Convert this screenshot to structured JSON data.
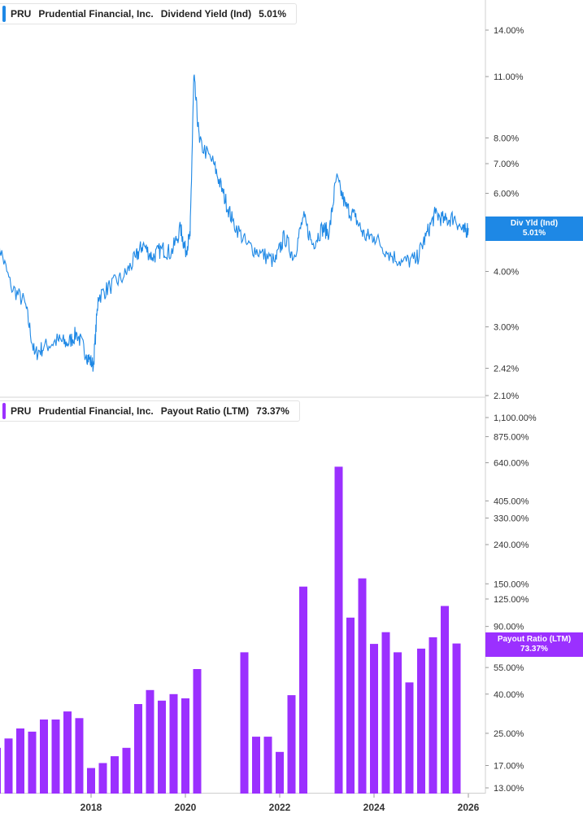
{
  "chart_data": [
    {
      "type": "line",
      "legend": {
        "ticker": "PRU",
        "company": "Prudential Financial, Inc.",
        "metric": "Dividend Yield (Ind)",
        "value": "5.01%"
      },
      "last_value_tag": {
        "line1": "Div Yld (Ind)",
        "line2": "5.01%"
      },
      "color": "#1e88e5",
      "scale": "log",
      "ylim": [
        2.1,
        16.5
      ],
      "y_ticks": [
        14.0,
        11.0,
        8.0,
        7.0,
        6.0,
        4.0,
        3.0,
        2.42,
        2.1
      ],
      "y_tick_labels": [
        "14.00%",
        "11.00%",
        "8.00%",
        "7.00%",
        "6.00%",
        "4.00%",
        "3.00%",
        "2.42%",
        "2.10%"
      ],
      "series": [
        {
          "points": [
            [
              2016.0,
              4.8
            ],
            [
              2016.3,
              3.7
            ],
            [
              2016.6,
              3.4
            ],
            [
              2016.8,
              2.6
            ],
            [
              2017.0,
              2.7
            ],
            [
              2017.3,
              2.8
            ],
            [
              2017.5,
              2.75
            ],
            [
              2017.7,
              2.9
            ],
            [
              2017.9,
              2.6
            ],
            [
              2018.05,
              2.45
            ],
            [
              2018.15,
              3.5
            ],
            [
              2018.4,
              3.7
            ],
            [
              2018.7,
              3.9
            ],
            [
              2018.95,
              4.3
            ],
            [
              2019.1,
              4.6
            ],
            [
              2019.3,
              4.3
            ],
            [
              2019.5,
              4.5
            ],
            [
              2019.7,
              4.4
            ],
            [
              2019.9,
              5.0
            ],
            [
              2020.0,
              4.45
            ],
            [
              2020.1,
              4.8
            ],
            [
              2020.18,
              11.0
            ],
            [
              2020.3,
              7.8
            ],
            [
              2020.6,
              7.0
            ],
            [
              2020.8,
              6.0
            ],
            [
              2021.0,
              5.2
            ],
            [
              2021.3,
              4.6
            ],
            [
              2021.6,
              4.4
            ],
            [
              2021.9,
              4.2
            ],
            [
              2022.1,
              4.8
            ],
            [
              2022.3,
              4.3
            ],
            [
              2022.5,
              5.3
            ],
            [
              2022.7,
              4.6
            ],
            [
              2022.9,
              5.0
            ],
            [
              2023.05,
              4.9
            ],
            [
              2023.2,
              6.5
            ],
            [
              2023.4,
              5.6
            ],
            [
              2023.6,
              5.3
            ],
            [
              2023.8,
              4.8
            ],
            [
              2024.0,
              4.8
            ],
            [
              2024.3,
              4.4
            ],
            [
              2024.6,
              4.2
            ],
            [
              2024.9,
              4.25
            ],
            [
              2025.1,
              4.8
            ],
            [
              2025.3,
              5.4
            ],
            [
              2025.5,
              5.2
            ],
            [
              2025.7,
              5.3
            ],
            [
              2025.9,
              4.9
            ],
            [
              2026.0,
              5.01
            ]
          ]
        }
      ]
    },
    {
      "type": "bar",
      "legend": {
        "ticker": "PRU",
        "company": "Prudential Financial, Inc.",
        "metric": "Payout Ratio (LTM)",
        "value": "73.37%"
      },
      "last_value_tag": {
        "line1": "Payout Ratio (LTM)",
        "line2": "73.37%"
      },
      "color": "#9b30ff",
      "scale": "log",
      "ylim": [
        12.5,
        1300
      ],
      "y_ticks": [
        1100,
        875,
        640,
        405,
        330,
        240,
        150,
        125,
        90,
        55,
        40,
        25,
        17,
        13
      ],
      "y_tick_labels": [
        "1,100.00%",
        "875.00%",
        "640.00%",
        "405.00%",
        "330.00%",
        "240.00%",
        "150.00%",
        "125.00%",
        "90.00%",
        "55.00%",
        "40.00%",
        "25.00%",
        "17.00%",
        "13.00%"
      ],
      "x": [
        2016.0,
        2016.125,
        2016.25,
        2016.375,
        2016.5,
        2016.625,
        2016.75,
        2016.875,
        2017.0,
        2017.125,
        2017.25,
        2017.375,
        2017.5,
        2017.625,
        2017.75,
        2017.875,
        2018.0,
        2018.125,
        2018.25,
        2018.375,
        2018.5,
        2018.625,
        2018.75,
        2018.875,
        2019.0,
        2019.125,
        2019.25,
        2019.375,
        2019.5,
        2019.625,
        2019.75,
        2019.875,
        2020.0,
        2020.125,
        2020.25,
        2020.375,
        2020.5,
        2020.625,
        2020.75,
        2020.875,
        2021.0,
        2021.125,
        2021.25,
        2021.375,
        2021.5,
        2021.625,
        2021.75,
        2021.875,
        2022.0,
        2022.125,
        2022.25,
        2022.375,
        2022.5,
        2022.625,
        2022.75,
        2022.875,
        2023.0,
        2023.125,
        2023.25,
        2023.375,
        2023.5,
        2023.625,
        2023.75,
        2023.875,
        2024.0,
        2024.125,
        2024.25,
        2024.375,
        2024.5,
        2024.625,
        2024.75,
        2024.875,
        2025.0,
        2025.125,
        2025.25,
        2025.375,
        2025.5,
        2025.625,
        2025.75
      ],
      "values": [
        21,
        null,
        23.5,
        null,
        26.5,
        null,
        25.5,
        null,
        29.5,
        null,
        29.5,
        null,
        32.5,
        null,
        30,
        null,
        16.5,
        null,
        17.5,
        null,
        19,
        null,
        21,
        null,
        35.5,
        null,
        42,
        null,
        37,
        null,
        40,
        null,
        38,
        null,
        54,
        null,
        null,
        null,
        null,
        null,
        null,
        null,
        66,
        null,
        24,
        null,
        24,
        null,
        20,
        null,
        39.5,
        null,
        145,
        null,
        null,
        null,
        null,
        null,
        610,
        null,
        100,
        null,
        160,
        null,
        73,
        null,
        84,
        null,
        66,
        null,
        46,
        null,
        69,
        null,
        79,
        null,
        115,
        null,
        73.37
      ],
      "x_ticks": [
        2018,
        2020,
        2022,
        2024,
        2026
      ],
      "x_tick_labels": [
        "2018",
        "2020",
        "2022",
        "2024",
        "2026"
      ]
    }
  ]
}
